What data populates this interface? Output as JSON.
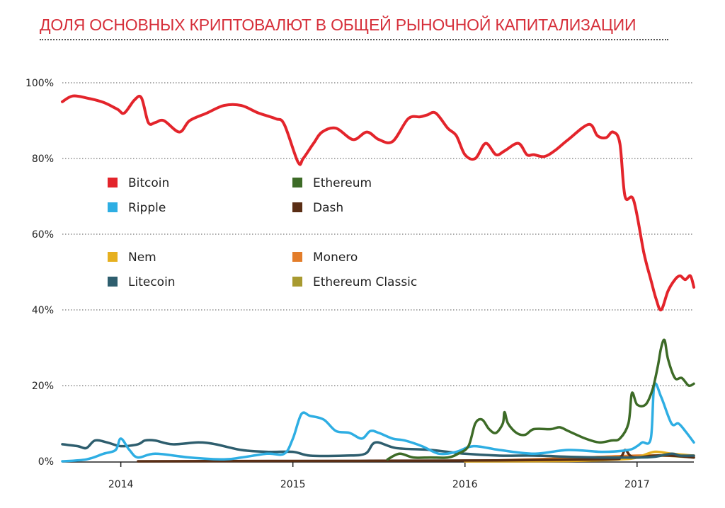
{
  "chart_data": {
    "type": "line",
    "title": "ДОЛЯ ОСНОВНЫХ КРИПТОВАЛЮТ В ОБЩЕЙ РЫНОЧНОЙ КАПИТАЛИЗАЦИИ",
    "xlabel": "",
    "ylabel": "",
    "xlim": [
      2013.66,
      2017.33
    ],
    "ylim": [
      0,
      100
    ],
    "y_ticks": [
      0,
      20,
      40,
      60,
      80,
      100
    ],
    "y_tick_labels": [
      "0%",
      "20%",
      "40%",
      "60%",
      "80%",
      "100%"
    ],
    "x_ticks": [
      2014,
      2015,
      2016,
      2017
    ],
    "x_tick_labels": [
      "2014",
      "2015",
      "2016",
      "2017"
    ],
    "grid": "horizontal dotted",
    "legend_position": "upper-left inside plot, two columns",
    "series": [
      {
        "name": "Bitcoin",
        "color": "#e3242b",
        "x": [
          2013.66,
          2013.72,
          2013.8,
          2013.9,
          2013.98,
          2014.02,
          2014.08,
          2014.12,
          2014.16,
          2014.2,
          2014.25,
          2014.34,
          2014.4,
          2014.5,
          2014.6,
          2014.7,
          2014.8,
          2014.9,
          2014.95,
          2015.03,
          2015.06,
          2015.12,
          2015.17,
          2015.25,
          2015.35,
          2015.43,
          2015.5,
          2015.58,
          2015.67,
          2015.74,
          2015.78,
          2015.83,
          2015.9,
          2015.95,
          2016.0,
          2016.06,
          2016.12,
          2016.18,
          2016.23,
          2016.31,
          2016.36,
          2016.4,
          2016.46,
          2016.52,
          2016.6,
          2016.72,
          2016.77,
          2016.82,
          2016.86,
          2016.9,
          2016.93,
          2016.98,
          2017.04,
          2017.08,
          2017.11,
          2017.14,
          2017.18,
          2017.22,
          2017.25,
          2017.28,
          2017.31,
          2017.33
        ],
        "values": [
          95,
          96.5,
          96,
          94.8,
          93,
          92,
          95.5,
          96,
          89.5,
          89.5,
          90,
          87,
          90,
          92,
          94,
          94,
          92,
          90.5,
          89,
          79,
          80,
          84,
          87,
          88,
          85,
          87,
          85,
          84.5,
          90.5,
          91,
          91.5,
          92,
          88,
          86,
          81,
          80,
          84,
          81,
          82,
          84,
          81,
          81,
          80.5,
          82,
          85,
          89,
          86,
          85.5,
          87,
          84,
          70,
          69,
          55,
          48,
          43,
          40,
          45,
          48,
          49,
          48,
          49,
          46
        ]
      },
      {
        "name": "Ethereum",
        "color": "#3d6b27",
        "x": [
          2015.55,
          2015.62,
          2015.7,
          2015.8,
          2015.9,
          2015.96,
          2016.02,
          2016.06,
          2016.1,
          2016.14,
          2016.18,
          2016.22,
          2016.23,
          2016.25,
          2016.3,
          2016.35,
          2016.4,
          2016.5,
          2016.55,
          2016.6,
          2016.7,
          2016.78,
          2016.85,
          2016.9,
          2016.95,
          2016.97,
          2017.0,
          2017.05,
          2017.09,
          2017.12,
          2017.14,
          2017.16,
          2017.18,
          2017.22,
          2017.26,
          2017.3,
          2017.33
        ],
        "values": [
          0.5,
          2,
          1,
          1,
          1,
          2,
          4,
          10,
          11,
          8.5,
          7.5,
          10,
          13,
          10,
          7.5,
          7,
          8.5,
          8.5,
          9,
          8,
          6,
          5,
          5.5,
          6,
          10,
          18,
          15,
          15,
          19,
          25,
          30,
          32,
          27,
          22,
          22,
          20,
          20.5
        ]
      },
      {
        "name": "Ripple",
        "color": "#2eaee3",
        "x": [
          2013.66,
          2013.8,
          2013.9,
          2013.97,
          2014.0,
          2014.05,
          2014.1,
          2014.2,
          2014.4,
          2014.6,
          2014.7,
          2014.85,
          2014.95,
          2015.0,
          2015.05,
          2015.1,
          2015.18,
          2015.25,
          2015.33,
          2015.4,
          2015.45,
          2015.5,
          2015.58,
          2015.65,
          2015.75,
          2015.85,
          2015.95,
          2016.05,
          2016.2,
          2016.4,
          2016.6,
          2016.8,
          2016.95,
          2017.0,
          2017.03,
          2017.08,
          2017.1,
          2017.14,
          2017.2,
          2017.24,
          2017.28,
          2017.33
        ],
        "values": [
          0,
          0.5,
          2,
          3,
          6,
          3,
          1,
          2,
          1,
          0.5,
          1,
          2,
          2,
          6,
          12.5,
          12,
          11,
          8,
          7.5,
          6,
          8,
          7.5,
          6,
          5.5,
          4,
          2,
          2.5,
          4,
          3,
          2,
          3,
          2.5,
          3,
          4,
          5,
          6,
          20,
          17,
          10,
          10,
          8,
          5
        ]
      },
      {
        "name": "Dash",
        "color": "#5a2e15",
        "x": [
          2014.1,
          2015.0,
          2016.0,
          2016.8,
          2016.9,
          2016.93,
          2016.96,
          2017.0,
          2017.1,
          2017.2,
          2017.33
        ],
        "values": [
          0,
          0.1,
          0.2,
          0.5,
          1,
          3,
          1.5,
          1,
          1.5,
          1.5,
          1
        ]
      },
      {
        "name": "Nem",
        "color": "#e6b020",
        "x": [
          2016.0,
          2016.6,
          2016.9,
          2017.0,
          2017.1,
          2017.2,
          2017.33
        ],
        "values": [
          0,
          0.1,
          0.5,
          1,
          2.5,
          2,
          1.5
        ]
      },
      {
        "name": "Monero",
        "color": "#e37d2a",
        "x": [
          2016.0,
          2016.4,
          2016.7,
          2017.0,
          2017.15,
          2017.33
        ],
        "values": [
          0,
          0.5,
          1,
          1.5,
          1.5,
          1.5
        ]
      },
      {
        "name": "Litecoin",
        "color": "#2e5e6e",
        "x": [
          2013.66,
          2013.75,
          2013.8,
          2013.85,
          2013.92,
          2014.0,
          2014.1,
          2014.14,
          2014.2,
          2014.3,
          2014.45,
          2014.55,
          2014.7,
          2014.85,
          2015.0,
          2015.1,
          2015.3,
          2015.42,
          2015.48,
          2015.6,
          2015.8,
          2016.0,
          2016.2,
          2016.4,
          2016.6,
          2016.8,
          2017.0,
          2017.1,
          2017.2,
          2017.25,
          2017.33
        ],
        "values": [
          4.5,
          4,
          3.5,
          5.5,
          5,
          4,
          4.5,
          5.5,
          5.5,
          4.5,
          5,
          4.5,
          3,
          2.5,
          2.5,
          1.5,
          1.5,
          2,
          5,
          3.5,
          3,
          2,
          1.5,
          1.5,
          1.2,
          1,
          1,
          1.2,
          2,
          1.5,
          1.5
        ]
      },
      {
        "name": "Ethereum Classic",
        "color": "#a89a30",
        "x": [
          2016.55,
          2016.8,
          2017.0,
          2017.15,
          2017.33
        ],
        "values": [
          0.5,
          1,
          1,
          1.5,
          1
        ]
      }
    ]
  }
}
